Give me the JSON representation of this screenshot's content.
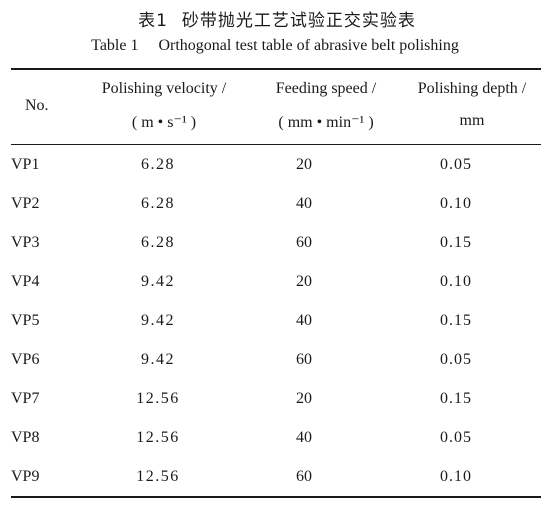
{
  "caption": {
    "cn_label": "表1",
    "cn_text": "砂带抛光工艺试验正交实验表",
    "en_label": "Table 1",
    "en_text": "Orthogonal test table of abrasive belt polishing"
  },
  "headers": {
    "no": "No.",
    "velocity_name": "Polishing velocity /",
    "velocity_unit": "( m • s⁻¹ )",
    "feed_name": "Feeding speed /",
    "feed_unit": "( mm • min⁻¹ )",
    "depth_name": "Polishing depth /",
    "depth_unit": "mm"
  },
  "rows": [
    {
      "no": "VP1",
      "velocity": "6.28",
      "feed": "20",
      "depth": "0.05"
    },
    {
      "no": "VP2",
      "velocity": "6.28",
      "feed": "40",
      "depth": "0.10"
    },
    {
      "no": "VP3",
      "velocity": "6.28",
      "feed": "60",
      "depth": "0.15"
    },
    {
      "no": "VP4",
      "velocity": "9.42",
      "feed": "20",
      "depth": "0.10"
    },
    {
      "no": "VP5",
      "velocity": "9.42",
      "feed": "40",
      "depth": "0.15"
    },
    {
      "no": "VP6",
      "velocity": "9.42",
      "feed": "60",
      "depth": "0.05"
    },
    {
      "no": "VP7",
      "velocity": "12.56",
      "feed": "20",
      "depth": "0.15"
    },
    {
      "no": "VP8",
      "velocity": "12.56",
      "feed": "40",
      "depth": "0.05"
    },
    {
      "no": "VP9",
      "velocity": "12.56",
      "feed": "60",
      "depth": "0.10"
    }
  ]
}
